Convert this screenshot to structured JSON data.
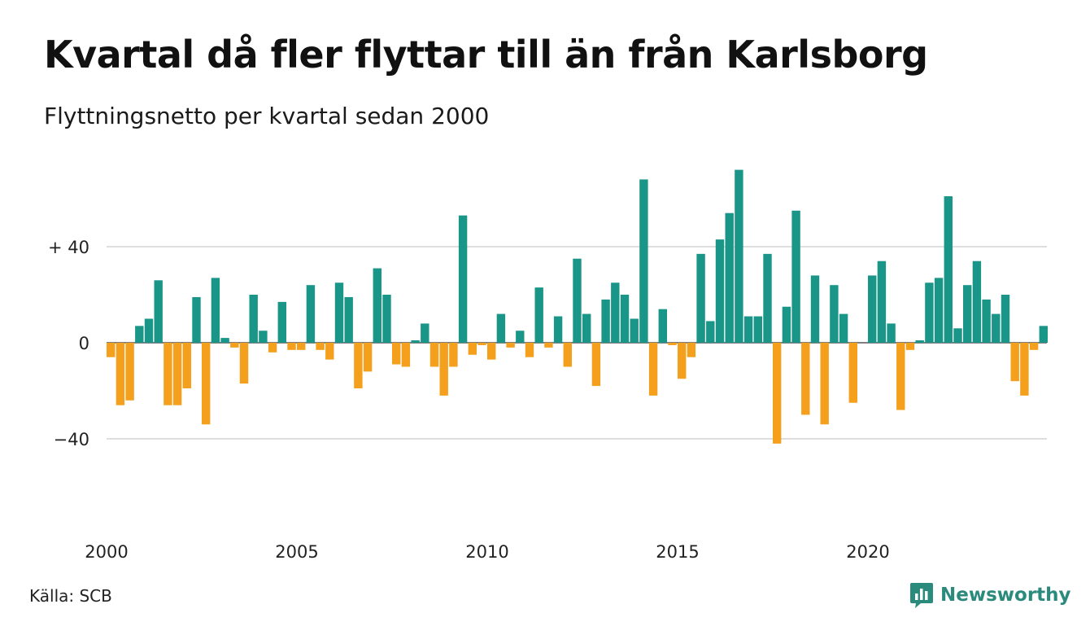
{
  "title": "Kvartal då fler flyttar till än från Karlsborg",
  "subtitle": "Flyttningsnetto per kvartal sedan 2000",
  "source": "Källa: SCB",
  "brand": {
    "name": "Newsworthy",
    "icon": "bar-chart-speech-bubble-icon"
  },
  "colors": {
    "positive": "#1a9688",
    "negative": "#f4a01d",
    "grid": "#dedede",
    "brand": "#2a8a7c"
  },
  "chart_data": {
    "type": "bar",
    "x_start": "2000 Q1",
    "values": [
      -6,
      -26,
      -24,
      7,
      10,
      26,
      -26,
      -26,
      -19,
      19,
      -34,
      27,
      2,
      -2,
      -17,
      20,
      5,
      -4,
      17,
      -3,
      -3,
      24,
      -3,
      -7,
      25,
      19,
      -19,
      -12,
      31,
      20,
      -9,
      -10,
      1,
      8,
      -10,
      -22,
      -10,
      53,
      -5,
      -1,
      -7,
      12,
      -2,
      5,
      -6,
      23,
      -2,
      11,
      -10,
      35,
      12,
      -18,
      18,
      25,
      20,
      10,
      68,
      -22,
      14,
      -1,
      -15,
      -6,
      37,
      9,
      43,
      54,
      72,
      11,
      11,
      37,
      -42,
      15,
      55,
      -30,
      28,
      -34,
      24,
      12,
      -25,
      0,
      28,
      34,
      8,
      -28,
      -3,
      1,
      25,
      27,
      61,
      6,
      24,
      34,
      18,
      12,
      20,
      -16,
      -22,
      -3,
      7
    ],
    "y_ticks": [
      {
        "value": 40,
        "label": "+ 40"
      },
      {
        "value": 0,
        "label": "0"
      },
      {
        "value": -40,
        "label": "−40"
      }
    ],
    "x_ticks": [
      {
        "index": 0,
        "label": "2000"
      },
      {
        "index": 20,
        "label": "2005"
      },
      {
        "index": 40,
        "label": "2010"
      },
      {
        "index": 60,
        "label": "2015"
      },
      {
        "index": 80,
        "label": "2020"
      }
    ],
    "ylim": [
      -78,
      78
    ],
    "grid": true,
    "legend": "none"
  }
}
